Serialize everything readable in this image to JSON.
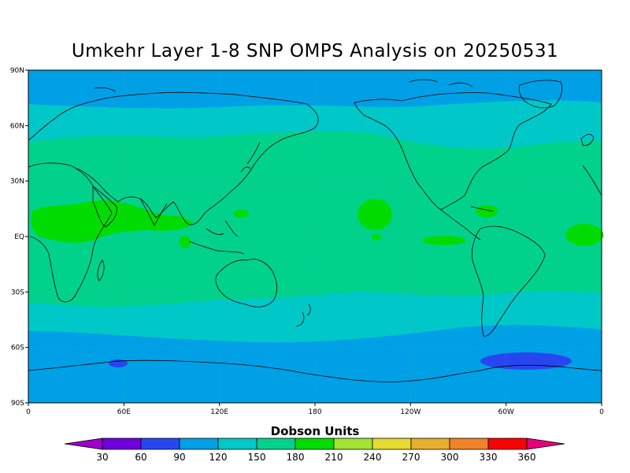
{
  "title": "Umkehr Layer 1-8 SNP OMPS Analysis on 20250531",
  "lat_labels": [
    "90N",
    "60N",
    "30N",
    "EQ",
    "30S",
    "60S",
    "90S"
  ],
  "lon_labels": [
    "0",
    "60E",
    "120E",
    "180",
    "120W",
    "60W",
    "0"
  ],
  "colorbar": {
    "title": "Dobson Units",
    "labels": [
      "30",
      "60",
      "90",
      "120",
      "150",
      "180",
      "210",
      "240",
      "270",
      "300",
      "330",
      "360"
    ],
    "colors": [
      "#a000c8",
      "#6e00dc",
      "#2846f0",
      "#00a0e6",
      "#00c8c8",
      "#00d28c",
      "#00dc00",
      "#a0e632",
      "#e6dc32",
      "#e6af2d",
      "#f08228",
      "#fa0000",
      "#e6007a"
    ]
  },
  "field_colors": {
    "band_90_120": "#00a0e6",
    "band_120_150": "#00c8c8",
    "band_150_180": "#00d28c",
    "band_180_210": "#00dc00",
    "band_60_90": "#2846f0"
  }
}
